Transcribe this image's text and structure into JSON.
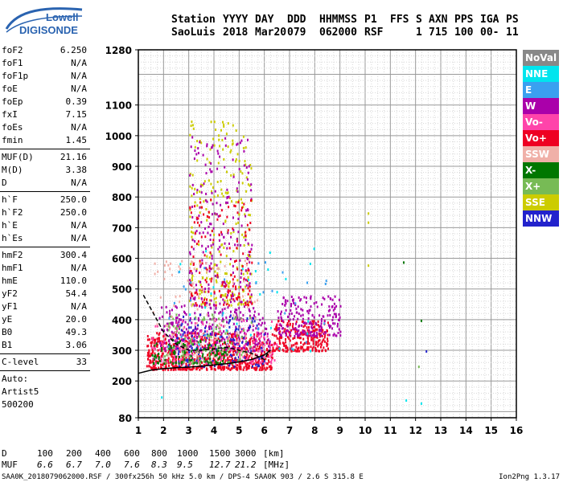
{
  "logo": {
    "line1": "Lowell",
    "line2": "DIGISONDE"
  },
  "header": {
    "labels": [
      "Station",
      "YYYY",
      "DAY",
      "DDD",
      "HHMMSS",
      "P1",
      "FFS",
      "S",
      "AXN",
      "PPS",
      "IGA",
      "PS"
    ],
    "values": [
      "SaoLuis",
      "2018",
      "Mar20",
      "079",
      "062000",
      "RSF",
      "",
      "1",
      "715",
      "100",
      "00-",
      "11"
    ]
  },
  "params": [
    {
      "group": [
        {
          "label": "foF2",
          "value": "6.250"
        },
        {
          "label": "foF1",
          "value": "N/A"
        },
        {
          "label": "foF1p",
          "value": "N/A"
        },
        {
          "label": "foE",
          "value": "N/A"
        },
        {
          "label": "foEp",
          "value": "0.39"
        },
        {
          "label": "fxI",
          "value": "7.15"
        },
        {
          "label": "foEs",
          "value": "N/A"
        },
        {
          "label": "fmin",
          "value": "1.45"
        }
      ]
    },
    {
      "group": [
        {
          "label": "MUF(D)",
          "value": "21.16"
        },
        {
          "label": "M(D)",
          "value": "3.38"
        },
        {
          "label": "D",
          "value": "N/A"
        }
      ]
    },
    {
      "group": [
        {
          "label": "h`F",
          "value": "250.0"
        },
        {
          "label": "h`F2",
          "value": "250.0"
        },
        {
          "label": "h`E",
          "value": "N/A"
        },
        {
          "label": "h`Es",
          "value": "N/A"
        }
      ]
    },
    {
      "group": [
        {
          "label": "hmF2",
          "value": "300.4"
        },
        {
          "label": "hmF1",
          "value": "N/A"
        },
        {
          "label": "hmE",
          "value": "110.0"
        },
        {
          "label": "yF2",
          "value": "54.4"
        },
        {
          "label": "yF1",
          "value": "N/A"
        },
        {
          "label": "yE",
          "value": "20.0"
        },
        {
          "label": "B0",
          "value": "49.3"
        },
        {
          "label": "B1",
          "value": "3.06"
        }
      ]
    },
    {
      "group": [
        {
          "label": "C-level",
          "value": "33"
        }
      ]
    }
  ],
  "auto": {
    "line1": "Auto:",
    "line2": "Artist5",
    "line3": "500200"
  },
  "legend": [
    {
      "name": "NoVal",
      "color": "#888888"
    },
    {
      "name": "NNE",
      "color": "#00e5ee"
    },
    {
      "name": "E",
      "color": "#3aa0f0"
    },
    {
      "name": "W",
      "color": "#aa00aa"
    },
    {
      "name": "Vo-",
      "color": "#ff44aa"
    },
    {
      "name": "Vo+",
      "color": "#ee0022"
    },
    {
      "name": "SSW",
      "color": "#f0b0a8"
    },
    {
      "name": "X-",
      "color": "#007700"
    },
    {
      "name": "X+",
      "color": "#77bb55"
    },
    {
      "name": "SSE",
      "color": "#cccc00"
    },
    {
      "name": "NNW",
      "color": "#2222cc"
    }
  ],
  "footer": {
    "d_label": "D",
    "d_values": [
      "100",
      "200",
      "400",
      "600",
      "800",
      "1000",
      "1500",
      "3000"
    ],
    "d_unit": "[km]",
    "muf_label": "MUF",
    "muf_values": [
      "6.6",
      "6.7",
      "7.0",
      "7.6",
      "8.3",
      "9.5",
      "12.7",
      "21.2"
    ],
    "muf_unit": "[MHz]",
    "file": "SAA0K_2018079062000.RSF / 300fx256h 50 kHz 5.0 km / DPS-4 SAA0K 903 / 2.6 S 315.8 E",
    "version": "Ion2Png 1.3.17"
  },
  "chart_data": {
    "type": "scatter",
    "title": "",
    "xlabel": "",
    "ylabel": "",
    "xlim": [
      1,
      16
    ],
    "ylim": [
      80,
      1280
    ],
    "x_ticks": [
      "1",
      "2",
      "3",
      "4",
      "5",
      "6",
      "7",
      "8",
      "9",
      "10",
      "11",
      "12",
      "13",
      "14",
      "15",
      "16"
    ],
    "y_ticks": [
      "80",
      "200",
      "300",
      "400",
      "500",
      "600",
      "700",
      "800",
      "900",
      "1000",
      "1100",
      "1280"
    ],
    "x_tick_values": [
      1,
      2,
      3,
      4,
      5,
      6,
      7,
      8,
      9,
      10,
      11,
      12,
      13,
      14,
      15,
      16
    ],
    "y_tick_values": [
      80,
      200,
      300,
      400,
      500,
      600,
      700,
      800,
      900,
      1000,
      1100,
      1280
    ],
    "grid": true,
    "profile_curve": {
      "x": [
        1.0,
        1.5,
        2.0,
        2.5,
        3.0,
        3.5,
        4.0,
        4.5,
        5.0,
        5.5,
        6.0,
        6.25
      ],
      "y": [
        225,
        235,
        240,
        243,
        245,
        248,
        252,
        256,
        262,
        270,
        285,
        300
      ]
    },
    "trace_curve": {
      "x": [
        1.2,
        1.6,
        2.0,
        2.5,
        3.0,
        3.5,
        4.0,
        4.5,
        5.0,
        5.5,
        6.0,
        6.2
      ],
      "y": [
        480,
        420,
        360,
        320,
        300,
        300,
        305,
        310,
        300,
        290,
        270,
        300
      ]
    },
    "scatter_clusters": [
      {
        "series": "Vo+",
        "x": [
          1.3,
          6.3
        ],
        "y": [
          240,
          360
        ],
        "n": 700
      },
      {
        "series": "Vo+",
        "x": [
          6.3,
          8.5
        ],
        "y": [
          300,
          400
        ],
        "n": 250
      },
      {
        "series": "W",
        "x": [
          1.8,
          6.2
        ],
        "y": [
          300,
          450
        ],
        "n": 320
      },
      {
        "series": "W",
        "x": [
          6.5,
          9.0
        ],
        "y": [
          350,
          480
        ],
        "n": 200
      },
      {
        "series": "NNW",
        "x": [
          2.5,
          6.0
        ],
        "y": [
          250,
          420
        ],
        "n": 150
      },
      {
        "series": "Vo-",
        "x": [
          1.5,
          6.5
        ],
        "y": [
          260,
          400
        ],
        "n": 180
      },
      {
        "series": "X-",
        "x": [
          1.5,
          4.5
        ],
        "y": [
          260,
          340
        ],
        "n": 120
      },
      {
        "series": "X+",
        "x": [
          2.0,
          5.5
        ],
        "y": [
          260,
          420
        ],
        "n": 100
      },
      {
        "series": "SSE",
        "x": [
          3.0,
          5.5
        ],
        "y": [
          450,
          1050
        ],
        "n": 260
      },
      {
        "series": "W",
        "x": [
          3.0,
          5.5
        ],
        "y": [
          450,
          1000
        ],
        "n": 220
      },
      {
        "series": "Vo+",
        "x": [
          3.0,
          5.5
        ],
        "y": [
          450,
          800
        ],
        "n": 140
      },
      {
        "series": "SSW",
        "x": [
          1.5,
          6.0
        ],
        "y": [
          280,
          600
        ],
        "n": 120
      },
      {
        "series": "NNE",
        "x": [
          2.0,
          8.5
        ],
        "y": [
          300,
          650
        ],
        "n": 30
      },
      {
        "series": "E",
        "x": [
          2.0,
          8.5
        ],
        "y": [
          300,
          650
        ],
        "n": 30
      }
    ],
    "isolated_points": [
      {
        "series": "SSE",
        "x": 10.1,
        "y": 750
      },
      {
        "series": "SSE",
        "x": 10.1,
        "y": 720
      },
      {
        "series": "SSE",
        "x": 10.1,
        "y": 580
      },
      {
        "series": "NNE",
        "x": 11.6,
        "y": 140
      },
      {
        "series": "NNE",
        "x": 1.9,
        "y": 150
      },
      {
        "series": "X-",
        "x": 11.5,
        "y": 590
      },
      {
        "series": "NNW",
        "x": 12.4,
        "y": 300
      },
      {
        "series": "X-",
        "x": 12.2,
        "y": 400
      },
      {
        "series": "NNE",
        "x": 12.2,
        "y": 130
      },
      {
        "series": "X+",
        "x": 12.1,
        "y": 250
      }
    ]
  }
}
